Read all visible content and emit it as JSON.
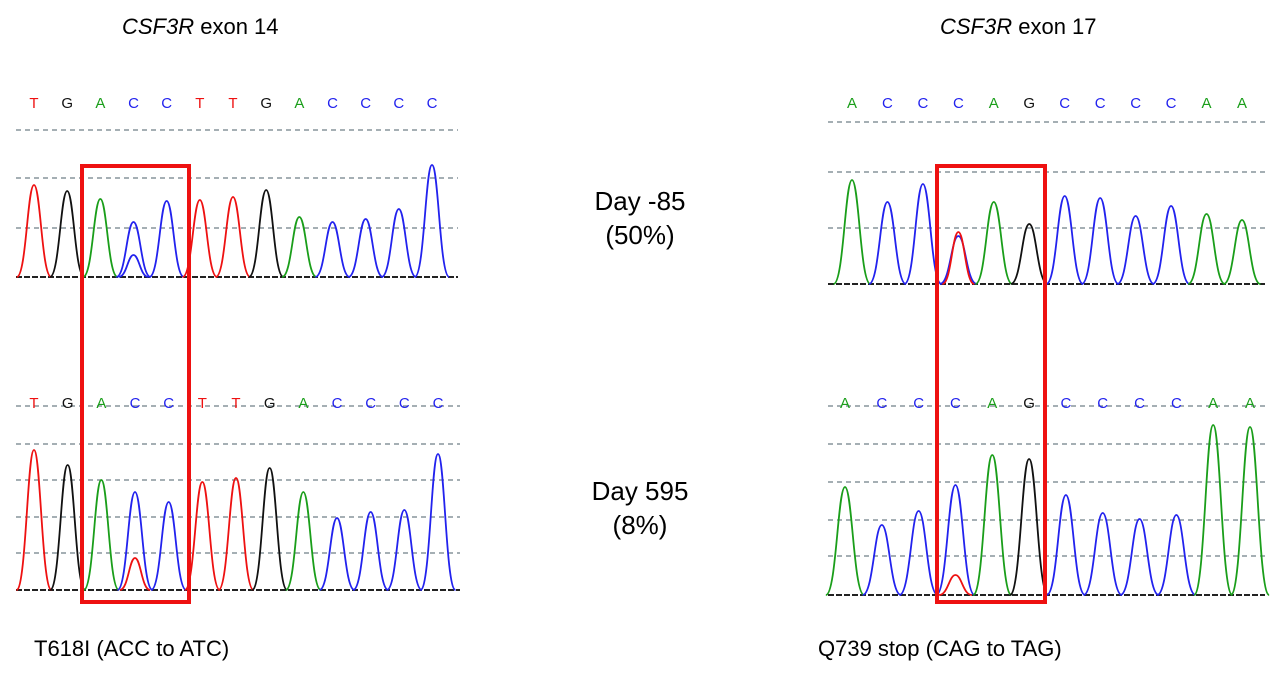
{
  "panels": {
    "left_title_gene": "CSF3R",
    "left_title_rest": " exon 14",
    "right_title_gene": "CSF3R",
    "right_title_rest": " exon 17",
    "left_mutation": "T618I (ACC to ATC)",
    "right_mutation": "Q739 stop (CAG to TAG)"
  },
  "timepoints": [
    {
      "day": "Day -85",
      "vaf": "(50%)"
    },
    {
      "day": "Day 595",
      "vaf": "(8%)"
    }
  ],
  "sequences": {
    "exon14": [
      "T",
      "G",
      "A",
      "C",
      "C",
      "T",
      "T",
      "G",
      "A",
      "C",
      "C",
      "C",
      "C"
    ],
    "exon17": [
      "A",
      "C",
      "C",
      "C",
      "A",
      "G",
      "C",
      "C",
      "C",
      "C",
      "A",
      "A"
    ]
  },
  "colors": {
    "A": "#1a9e1a",
    "C": "#2222ee",
    "G": "#111111",
    "T": "#ee1111",
    "box": "#ee1111",
    "grid": "#6f7f88"
  }
}
